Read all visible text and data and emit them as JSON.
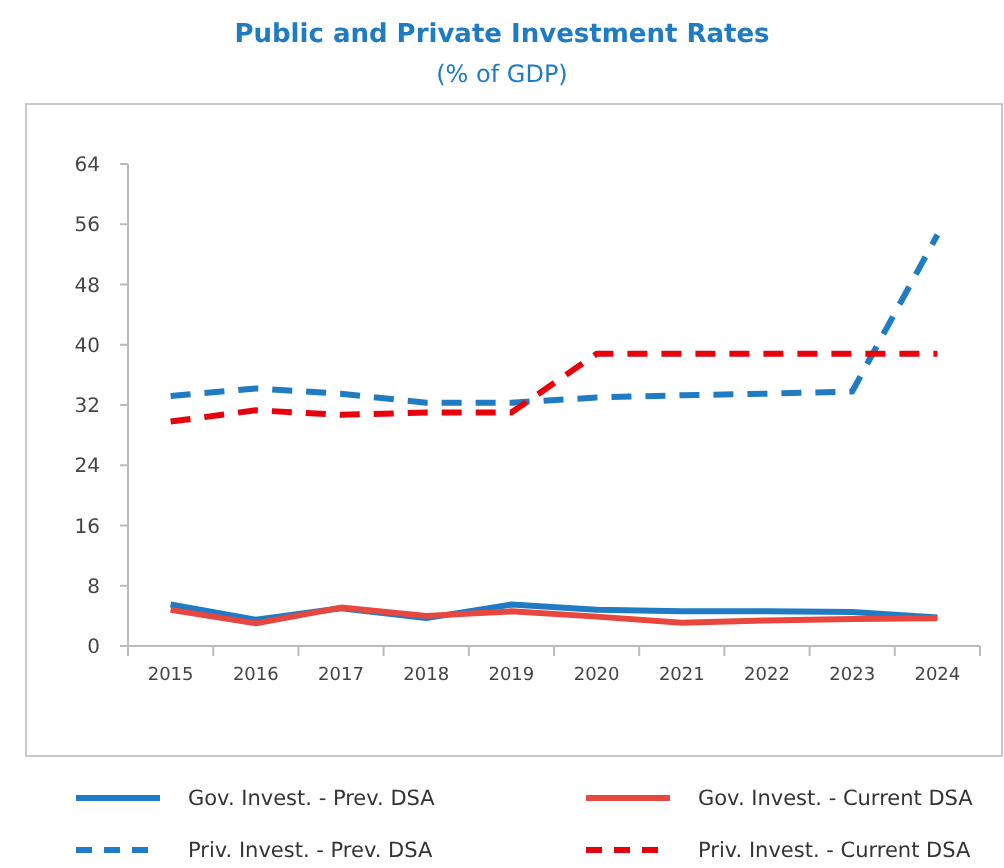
{
  "chart_data": {
    "type": "line",
    "title": "Public and Private Investment Rates",
    "subtitle": "(% of GDP)",
    "categories": [
      "2015",
      "2016",
      "2017",
      "2018",
      "2019",
      "2020",
      "2021",
      "2022",
      "2023",
      "2024"
    ],
    "ylim": [
      0,
      64
    ],
    "yticks": [
      0,
      8,
      16,
      24,
      32,
      40,
      48,
      56,
      64
    ],
    "grid": false,
    "legend": "bottom",
    "marker": "none",
    "series": [
      {
        "name": "Gov. Invest. - Prev. DSA",
        "color": "#1f7cc4",
        "line_style": "solid",
        "values": [
          5.5,
          3.5,
          5,
          3.7,
          5.5,
          4.8,
          4.6,
          4.6,
          4.5,
          3.8
        ]
      },
      {
        "name": "Gov. Invest. - Current DSA",
        "color": "#e8473f",
        "line_style": "solid",
        "values": [
          4.8,
          3,
          5.1,
          4,
          4.6,
          3.9,
          3.1,
          3.4,
          3.6,
          3.7
        ]
      },
      {
        "name": "Priv. Invest. - Prev. DSA",
        "color": "#1f7cc4",
        "line_style": "dashed",
        "values": [
          33.2,
          34.2,
          33.5,
          32.3,
          32.3,
          33,
          33.3,
          33.5,
          33.8,
          54.6
        ]
      },
      {
        "name": "Priv. Invest. - Current DSA",
        "color": "#e8000b",
        "line_style": "dashed",
        "values": [
          29.8,
          31.3,
          30.7,
          31,
          31,
          38.8,
          38.8,
          38.8,
          38.8,
          38.8
        ]
      }
    ]
  }
}
